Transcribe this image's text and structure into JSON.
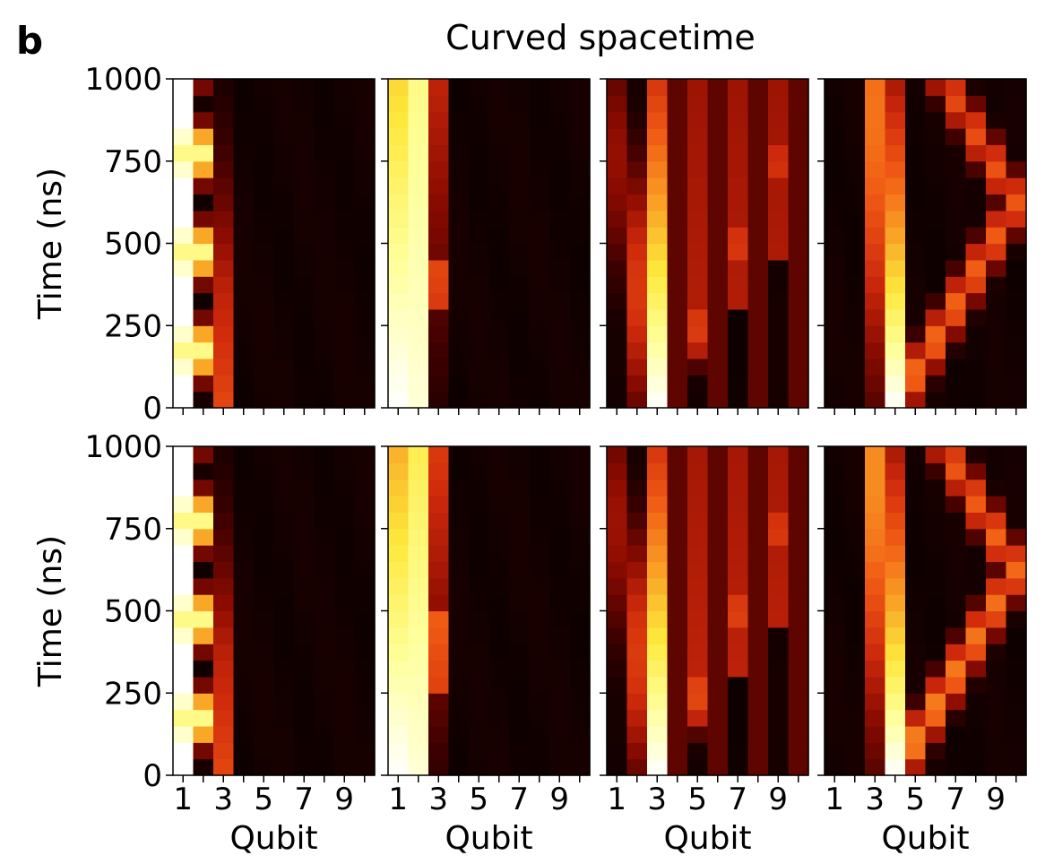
{
  "figure": {
    "panel_letter": "b",
    "title": "Curved spacetime"
  },
  "chart_data": {
    "type": "heatmap",
    "layout": {
      "rows": 2,
      "cols": 4
    },
    "xlabel": "Qubit",
    "ylabel": "Time (ns)",
    "x_categories": [
      1,
      2,
      3,
      4,
      5,
      6,
      7,
      8,
      9,
      10
    ],
    "x_tick_labels": [
      "1",
      "3",
      "5",
      "7",
      "9"
    ],
    "x_tick_values": [
      1,
      3,
      5,
      7,
      9
    ],
    "ylim": [
      0,
      1000
    ],
    "y_tick_values": [
      0,
      250,
      500,
      750,
      1000
    ],
    "y_tick_labels": [
      "0",
      "250",
      "500",
      "750",
      "1000"
    ],
    "time_bins": 20,
    "colormap": "hot",
    "colormap_stops": [
      "#000000",
      "#3d0000",
      "#8a0b00",
      "#cf2a0c",
      "#f05a14",
      "#f9a025",
      "#fde83a",
      "#ffff9a",
      "#ffffff"
    ],
    "panels": [
      {
        "row": 0,
        "col": 0,
        "initial_qubit": 1,
        "base_level": 0.03,
        "streams": [
          {
            "from": 1,
            "to": 1,
            "start": 0.85,
            "end": 0.85,
            "osc": 0.35,
            "per": 6
          },
          {
            "from": 2,
            "to": 2,
            "start": 0.0,
            "end": 0.0,
            "osc": 0.85,
            "per": 6,
            "phase": 3
          },
          {
            "from": 3,
            "to": 3,
            "start": 0.45,
            "end": 0.14,
            "falloff": 0.4
          }
        ]
      },
      {
        "row": 0,
        "col": 1,
        "initial_qubit": 1,
        "base_level": 0.03,
        "streams": [
          {
            "from": 1,
            "to": 1,
            "start": 1.0,
            "end": 0.72
          },
          {
            "from": 2,
            "to": 2,
            "start": 0.95,
            "end": 0.85
          },
          {
            "from": 3,
            "to": 3,
            "start": 0.08,
            "end": 0.35,
            "bump": [
              0.3,
              0.45
            ]
          }
        ]
      },
      {
        "row": 0,
        "col": 2,
        "initial_qubit": 3,
        "base_level": 0.03,
        "streams": [
          {
            "from": 3,
            "to": 3,
            "start": 1.0,
            "end": 0.4
          },
          {
            "from": 3,
            "to": 1,
            "start": 0.55,
            "end": 0.2
          },
          {
            "from": 3,
            "to": 10,
            "start": 0.45,
            "end": 0.38,
            "even_only": true
          }
        ]
      },
      {
        "row": 0,
        "col": 3,
        "initial_qubit": 4,
        "base_level": 0.03,
        "streams": [
          {
            "from": 4,
            "to": 4,
            "start": 1.0,
            "end": 0.3
          },
          {
            "from": 4,
            "to": 3,
            "start": 0.5,
            "end": 0.55
          },
          {
            "from": 4,
            "to": 10,
            "start": 0.55,
            "end": 0.45,
            "bounce": true
          }
        ]
      },
      {
        "row": 1,
        "col": 0,
        "initial_qubit": 1,
        "base_level": 0.03,
        "streams": [
          {
            "from": 1,
            "to": 1,
            "start": 0.85,
            "end": 0.85,
            "osc": 0.35,
            "per": 6
          },
          {
            "from": 2,
            "to": 2,
            "start": 0.0,
            "end": 0.0,
            "osc": 0.85,
            "per": 6,
            "phase": 3
          },
          {
            "from": 3,
            "to": 3,
            "start": 0.45,
            "end": 0.14,
            "falloff": 0.4
          }
        ]
      },
      {
        "row": 1,
        "col": 1,
        "initial_qubit": 1,
        "base_level": 0.03,
        "streams": [
          {
            "from": 1,
            "to": 1,
            "start": 1.0,
            "end": 0.65
          },
          {
            "from": 2,
            "to": 2,
            "start": 0.95,
            "end": 0.78
          },
          {
            "from": 3,
            "to": 3,
            "start": 0.1,
            "end": 0.42,
            "bump": [
              0.25,
              0.5
            ]
          }
        ]
      },
      {
        "row": 1,
        "col": 2,
        "initial_qubit": 3,
        "base_level": 0.03,
        "streams": [
          {
            "from": 3,
            "to": 3,
            "start": 1.0,
            "end": 0.4
          },
          {
            "from": 3,
            "to": 1,
            "start": 0.55,
            "end": 0.22
          },
          {
            "from": 3,
            "to": 10,
            "start": 0.48,
            "end": 0.4,
            "even_only": true
          }
        ]
      },
      {
        "row": 1,
        "col": 3,
        "initial_qubit": 4,
        "base_level": 0.03,
        "streams": [
          {
            "from": 4,
            "to": 4,
            "start": 1.0,
            "end": 0.3
          },
          {
            "from": 4,
            "to": 3,
            "start": 0.5,
            "end": 0.6
          },
          {
            "from": 4,
            "to": 10,
            "start": 0.6,
            "end": 0.48,
            "bounce": true
          }
        ]
      }
    ]
  }
}
